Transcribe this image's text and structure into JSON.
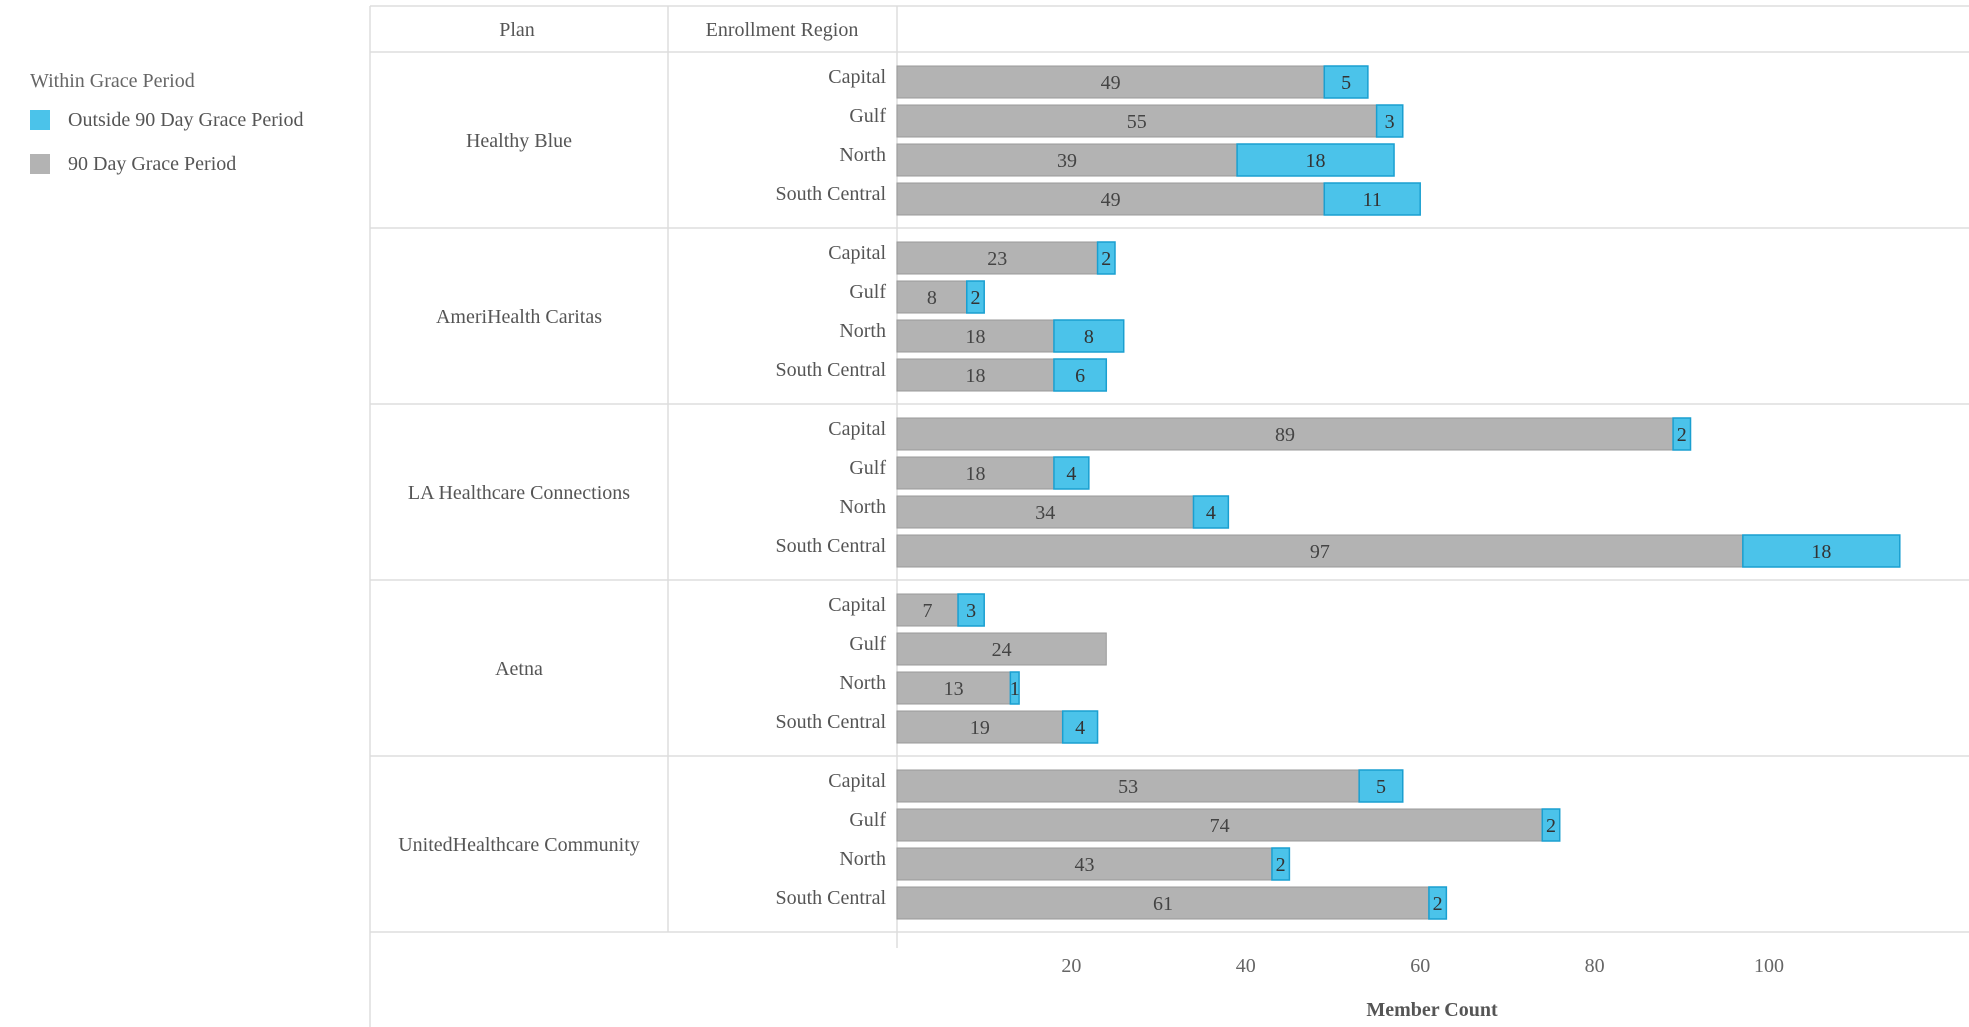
{
  "legend": {
    "title": "Within Grace Period",
    "items": [
      {
        "label": "Outside 90 Day Grace Period",
        "color": "#4bc3ea"
      },
      {
        "label": "90 Day Grace Period",
        "color": "#b3b3b3"
      }
    ]
  },
  "chart_data": {
    "type": "bar",
    "orientation": "horizontal",
    "stacked": true,
    "headers": {
      "plan": "Plan",
      "region": "Enrollment Region"
    },
    "xlabel": "Member Count",
    "xlim": [
      0,
      120
    ],
    "xticks": [
      20,
      40,
      60,
      80,
      100
    ],
    "grid": false,
    "series_colors": {
      "90 Day Grace Period": "#b3b3b3",
      "Outside 90 Day Grace Period": "#4bc3ea"
    },
    "plans": [
      {
        "name": "Healthy Blue",
        "regions": [
          {
            "region": "Capital",
            "within": 49,
            "outside": 5
          },
          {
            "region": "Gulf",
            "within": 55,
            "outside": 3
          },
          {
            "region": "North",
            "within": 39,
            "outside": 18
          },
          {
            "region": "South Central",
            "within": 49,
            "outside": 11
          }
        ]
      },
      {
        "name": "AmeriHealth Caritas",
        "regions": [
          {
            "region": "Capital",
            "within": 23,
            "outside": 2
          },
          {
            "region": "Gulf",
            "within": 8,
            "outside": 2
          },
          {
            "region": "North",
            "within": 18,
            "outside": 8
          },
          {
            "region": "South Central",
            "within": 18,
            "outside": 6
          }
        ]
      },
      {
        "name": "LA Healthcare Connections",
        "regions": [
          {
            "region": "Capital",
            "within": 89,
            "outside": 2
          },
          {
            "region": "Gulf",
            "within": 18,
            "outside": 4
          },
          {
            "region": "North",
            "within": 34,
            "outside": 4
          },
          {
            "region": "South Central",
            "within": 97,
            "outside": 18
          }
        ]
      },
      {
        "name": "Aetna",
        "regions": [
          {
            "region": "Capital",
            "within": 7,
            "outside": 3
          },
          {
            "region": "Gulf",
            "within": 24,
            "outside": null
          },
          {
            "region": "North",
            "within": 13,
            "outside": 1
          },
          {
            "region": "South Central",
            "within": 19,
            "outside": 4
          }
        ]
      },
      {
        "name": "UnitedHealthcare Community",
        "regions": [
          {
            "region": "Capital",
            "within": 53,
            "outside": 5
          },
          {
            "region": "Gulf",
            "within": 74,
            "outside": 2
          },
          {
            "region": "North",
            "within": 43,
            "outside": 2
          },
          {
            "region": "South Central",
            "within": 61,
            "outside": 2
          }
        ]
      }
    ]
  }
}
